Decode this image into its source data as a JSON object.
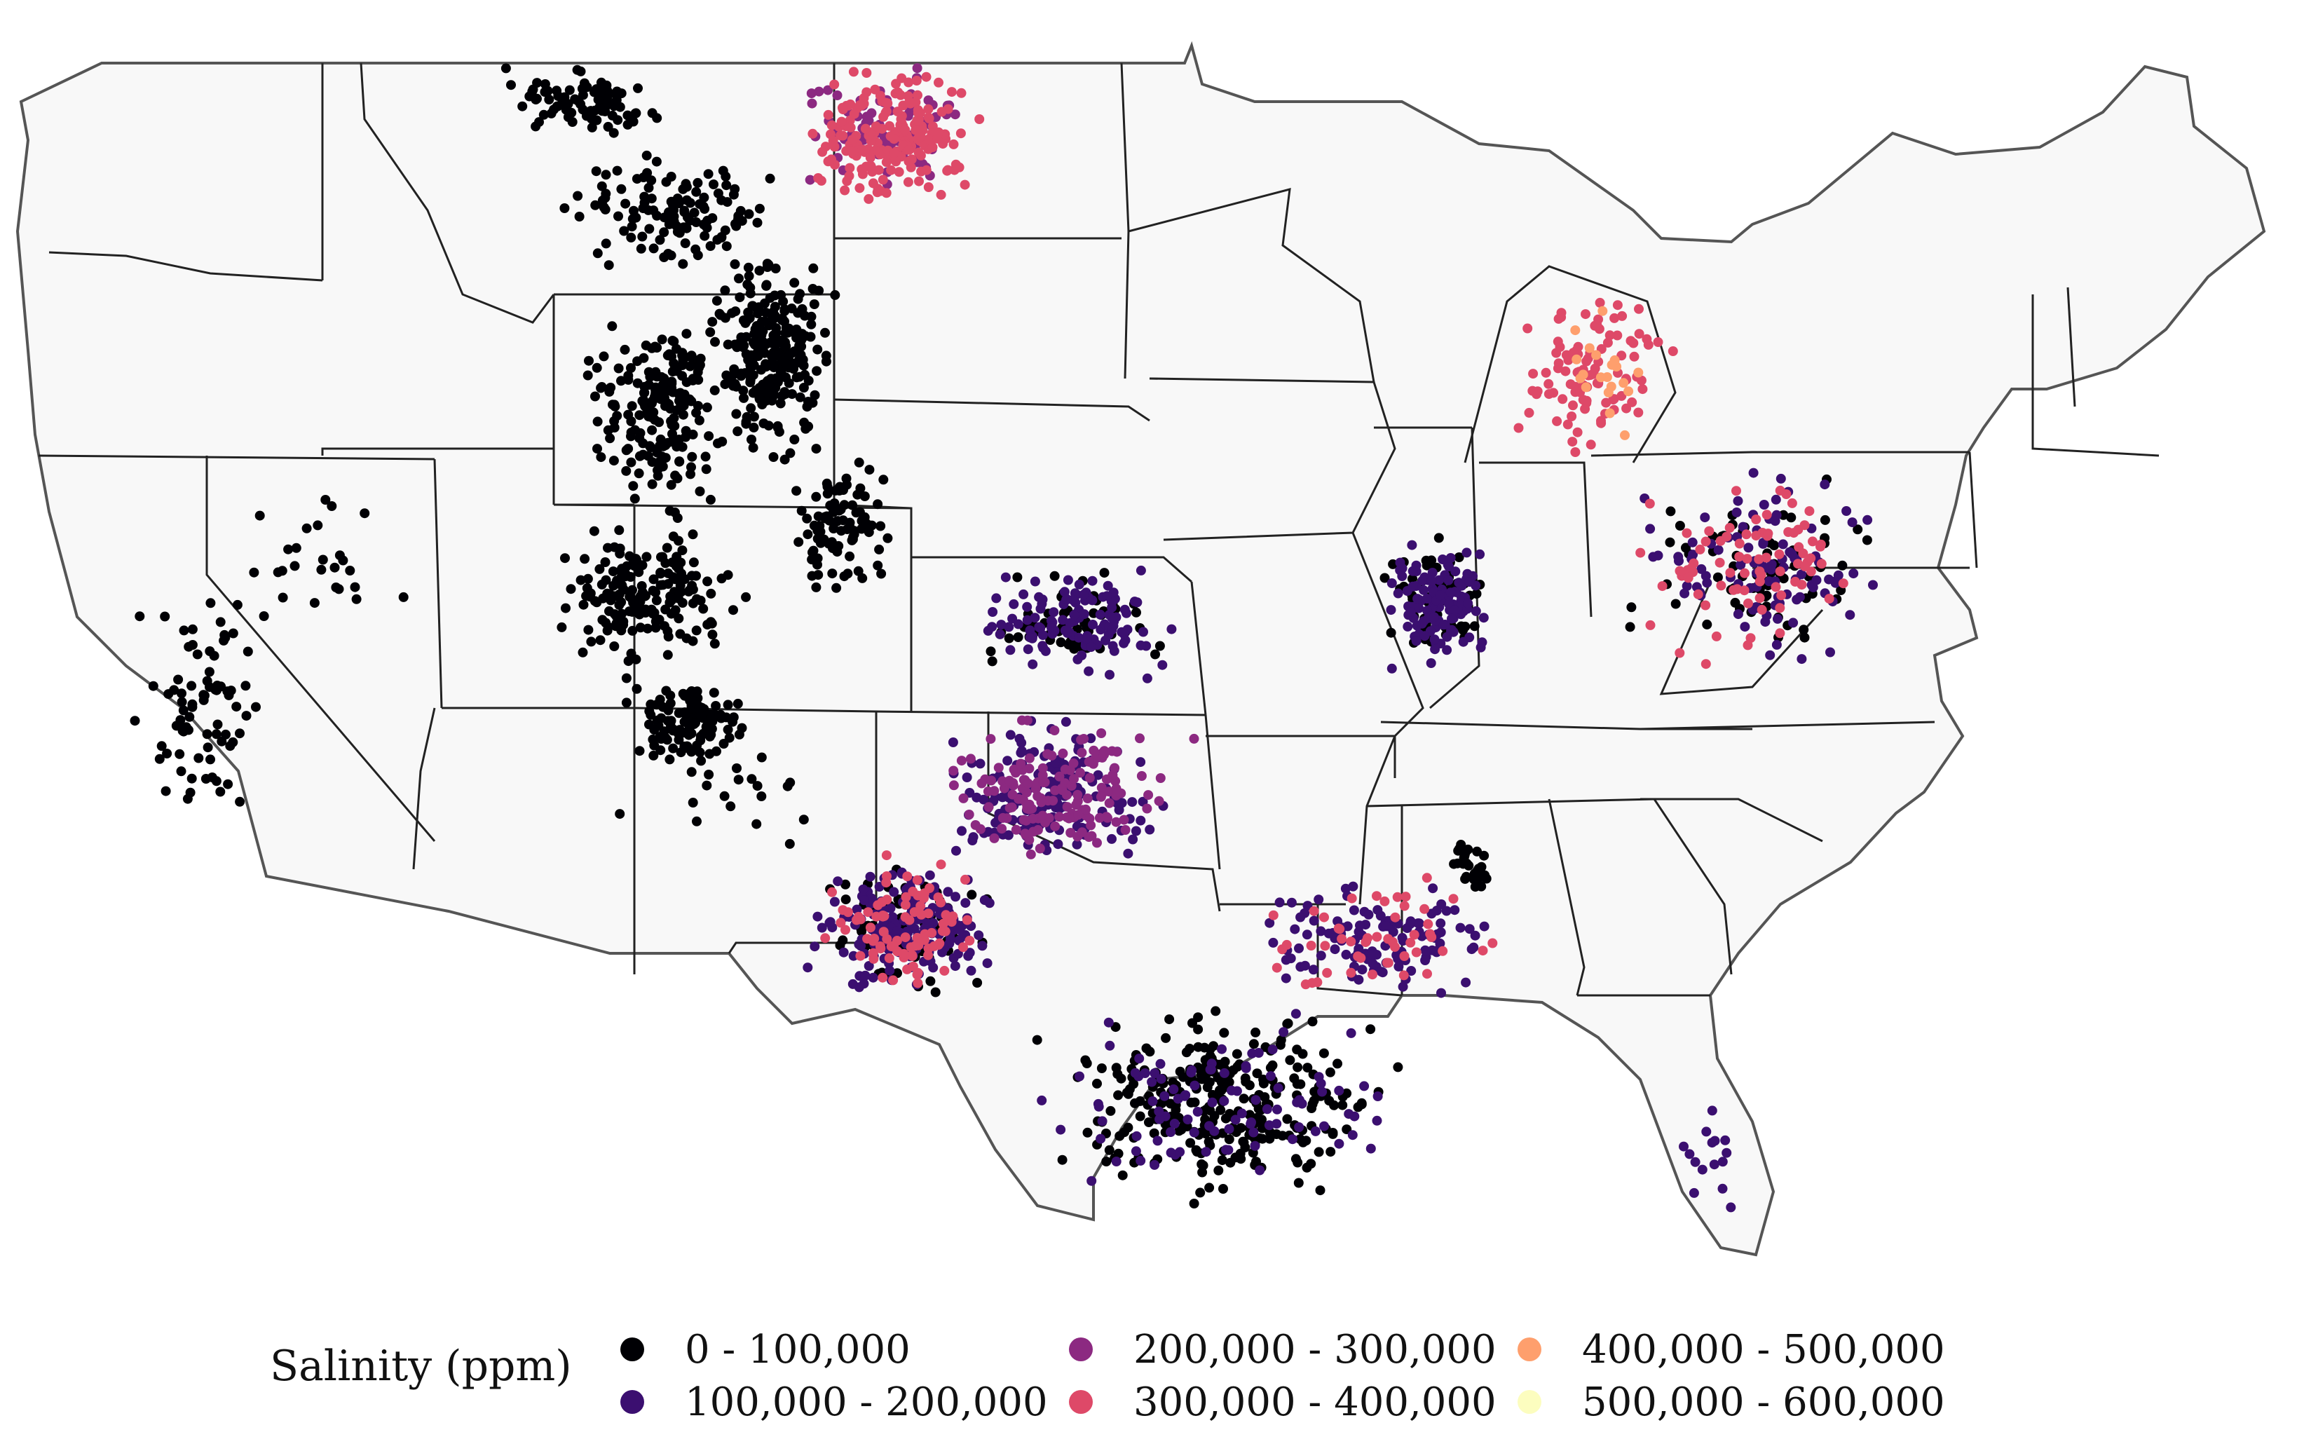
{
  "chart_data": {
    "type": "scatter",
    "map": "contiguous United States with state boundaries",
    "legend": {
      "title": "Salinity (ppm)",
      "placement": "bottom",
      "bins": [
        {
          "label": "0 - 100,000",
          "color": "#000004"
        },
        {
          "label": "100,000 - 200,000",
          "color": "#3b0f70"
        },
        {
          "label": "200,000 - 300,000",
          "color": "#8c2981"
        },
        {
          "label": "300,000 - 400,000",
          "color": "#de4968"
        },
        {
          "label": "400,000 - 500,000",
          "color": "#fe9f6d"
        },
        {
          "label": "500,000 - 600,000",
          "color": "#fcfdbf"
        }
      ]
    },
    "point_clusters": [
      {
        "region": "northern Montana",
        "bin": 0,
        "count": 90
      },
      {
        "region": "central Montana",
        "bin": 0,
        "count": 120
      },
      {
        "region": "Wyoming / Powder River Basin",
        "bin": 0,
        "count": 260
      },
      {
        "region": "Wyoming / Utah border",
        "bin": 0,
        "count": 200
      },
      {
        "region": "western Colorado / eastern Utah",
        "bin": 0,
        "count": 180
      },
      {
        "region": "Four Corners / San Juan Basin",
        "bin": 0,
        "count": 130
      },
      {
        "region": "Denver-Julesburg Basin",
        "bin": 0,
        "count": 90
      },
      {
        "region": "Williston Basin (North Dakota)",
        "bin": 3,
        "count": 200
      },
      {
        "region": "Williston Basin (North Dakota)",
        "bin": 2,
        "count": 80
      },
      {
        "region": "Kansas",
        "bin": 1,
        "count": 120
      },
      {
        "region": "Kansas",
        "bin": 0,
        "count": 60
      },
      {
        "region": "Oklahoma (Anadarko)",
        "bin": 2,
        "count": 160
      },
      {
        "region": "Oklahoma (Anadarko)",
        "bin": 1,
        "count": 160
      },
      {
        "region": "Permian Basin (West Texas)",
        "bin": 3,
        "count": 90
      },
      {
        "region": "Permian Basin (West Texas)",
        "bin": 1,
        "count": 180
      },
      {
        "region": "Permian Basin (West Texas)",
        "bin": 0,
        "count": 100
      },
      {
        "region": "Texas Gulf Coast",
        "bin": 0,
        "count": 300
      },
      {
        "region": "Texas Gulf Coast",
        "bin": 1,
        "count": 100
      },
      {
        "region": "Louisiana / Mississippi",
        "bin": 1,
        "count": 120
      },
      {
        "region": "Louisiana / Mississippi",
        "bin": 3,
        "count": 50
      },
      {
        "region": "Illinois Basin",
        "bin": 1,
        "count": 120
      },
      {
        "region": "Illinois Basin",
        "bin": 0,
        "count": 70
      },
      {
        "region": "Michigan Basin",
        "bin": 3,
        "count": 100
      },
      {
        "region": "Michigan Basin",
        "bin": 4,
        "count": 20
      },
      {
        "region": "Appalachian Basin",
        "bin": 3,
        "count": 80
      },
      {
        "region": "Appalachian Basin",
        "bin": 1,
        "count": 100
      },
      {
        "region": "Appalachian Basin",
        "bin": 0,
        "count": 70
      },
      {
        "region": "California",
        "bin": 0,
        "count": 80
      },
      {
        "region": "Nevada",
        "bin": 0,
        "count": 25
      },
      {
        "region": "New Mexico / Arizona",
        "bin": 0,
        "count": 20
      },
      {
        "region": "Florida",
        "bin": 1,
        "count": 15
      },
      {
        "region": "Alabama (Black Warrior)",
        "bin": 0,
        "count": 30
      }
    ]
  }
}
